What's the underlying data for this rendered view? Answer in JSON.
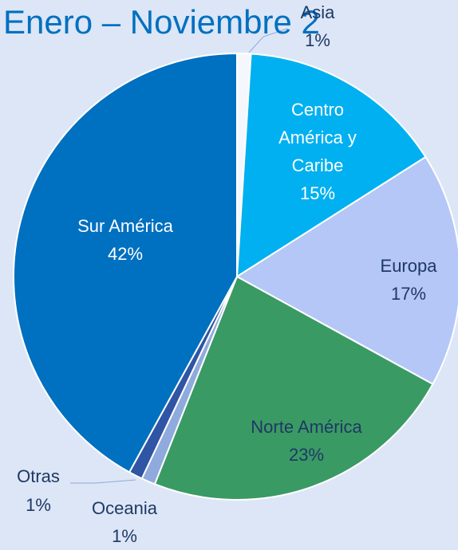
{
  "chart_data": {
    "type": "pie",
    "title": "Enero – Noviembre 2",
    "categories": [
      "Asia",
      "Centro América y Caribe",
      "Europa",
      "Norte América",
      "Oceania",
      "Otras",
      "Sur América"
    ],
    "values": [
      1,
      15,
      17,
      23,
      1,
      1,
      42
    ],
    "value_labels": [
      "1%",
      "15%",
      "17%",
      "23%",
      "1%",
      "1%",
      "42%"
    ],
    "colors": [
      "#f4f7fc",
      "#00b0f0",
      "#b4c7f7",
      "#3a9a64",
      "#8faadc",
      "#2f55a4",
      "#0070c0"
    ]
  }
}
